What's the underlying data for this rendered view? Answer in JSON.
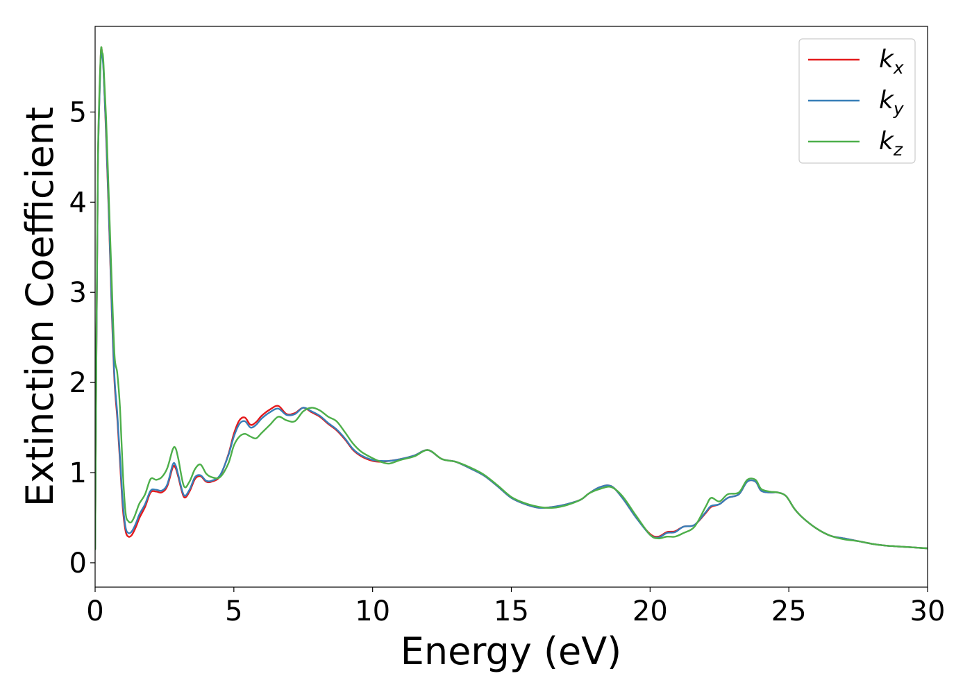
{
  "chart_data": {
    "type": "line",
    "title": "",
    "xlabel": "Energy (eV)",
    "ylabel": "Extinction Coefficient",
    "xlim": [
      0,
      30
    ],
    "ylim": [
      -0.27,
      5.95
    ],
    "xticks": [
      0,
      5,
      10,
      15,
      20,
      25,
      30
    ],
    "yticks": [
      0,
      1,
      2,
      3,
      4,
      5
    ],
    "grid": false,
    "legend_position": "top-right",
    "x": [
      0,
      0.05,
      0.1,
      0.2,
      0.25,
      0.3,
      0.4,
      0.5,
      0.6,
      0.7,
      0.8,
      0.9,
      1.0,
      1.1,
      1.2,
      1.3,
      1.4,
      1.5,
      1.6,
      1.8,
      2.0,
      2.2,
      2.4,
      2.6,
      2.8,
      2.9,
      3.0,
      3.2,
      3.4,
      3.6,
      3.8,
      4.0,
      4.2,
      4.5,
      4.8,
      5.0,
      5.2,
      5.4,
      5.6,
      5.8,
      6.0,
      6.3,
      6.6,
      6.9,
      7.2,
      7.5,
      7.8,
      8.1,
      8.4,
      8.7,
      9.0,
      9.3,
      9.6,
      10.0,
      10.3,
      10.6,
      11.0,
      11.5,
      12.0,
      12.5,
      13.0,
      13.5,
      14.0,
      14.5,
      15.0,
      15.5,
      16.0,
      16.5,
      17.0,
      17.5,
      17.8,
      18.2,
      18.6,
      19.0,
      19.5,
      20.0,
      20.3,
      20.6,
      20.9,
      21.2,
      21.6,
      22.0,
      22.2,
      22.5,
      22.8,
      23.2,
      23.5,
      23.8,
      24.0,
      24.3,
      24.6,
      24.9,
      25.2,
      25.5,
      26.0,
      26.5,
      27.0,
      27.5,
      28.0,
      28.5,
      29.0,
      29.5,
      30.0
    ],
    "series": [
      {
        "name": "k_x",
        "color": "#e41a1c",
        "values": [
          0.15,
          2.5,
          4.4,
          5.6,
          5.66,
          5.5,
          4.7,
          3.8,
          2.8,
          2.0,
          1.6,
          1.1,
          0.6,
          0.35,
          0.29,
          0.3,
          0.35,
          0.42,
          0.5,
          0.62,
          0.78,
          0.79,
          0.78,
          0.85,
          1.06,
          1.05,
          0.95,
          0.73,
          0.79,
          0.93,
          0.96,
          0.9,
          0.9,
          0.96,
          1.2,
          1.43,
          1.58,
          1.61,
          1.53,
          1.56,
          1.63,
          1.7,
          1.74,
          1.65,
          1.66,
          1.72,
          1.67,
          1.62,
          1.54,
          1.47,
          1.37,
          1.25,
          1.18,
          1.13,
          1.12,
          1.13,
          1.15,
          1.19,
          1.25,
          1.15,
          1.12,
          1.05,
          0.97,
          0.85,
          0.72,
          0.65,
          0.61,
          0.62,
          0.65,
          0.7,
          0.77,
          0.84,
          0.85,
          0.72,
          0.5,
          0.32,
          0.29,
          0.34,
          0.35,
          0.4,
          0.42,
          0.55,
          0.62,
          0.65,
          0.72,
          0.76,
          0.9,
          0.9,
          0.8,
          0.78,
          0.78,
          0.74,
          0.6,
          0.5,
          0.38,
          0.3,
          0.27,
          0.24,
          0.21,
          0.19,
          0.18,
          0.17,
          0.16
        ]
      },
      {
        "name": "k_y",
        "color": "#377eb8",
        "values": [
          0.15,
          2.5,
          4.4,
          5.55,
          5.62,
          5.48,
          4.75,
          3.85,
          2.85,
          2.05,
          1.65,
          1.15,
          0.66,
          0.39,
          0.33,
          0.34,
          0.39,
          0.46,
          0.54,
          0.65,
          0.8,
          0.81,
          0.8,
          0.87,
          1.09,
          1.08,
          0.97,
          0.75,
          0.81,
          0.95,
          0.97,
          0.91,
          0.91,
          0.97,
          1.19,
          1.4,
          1.54,
          1.57,
          1.5,
          1.53,
          1.6,
          1.67,
          1.71,
          1.64,
          1.65,
          1.72,
          1.68,
          1.63,
          1.55,
          1.48,
          1.38,
          1.26,
          1.19,
          1.14,
          1.13,
          1.13,
          1.15,
          1.19,
          1.25,
          1.15,
          1.12,
          1.05,
          0.97,
          0.85,
          0.72,
          0.65,
          0.61,
          0.62,
          0.65,
          0.7,
          0.77,
          0.84,
          0.85,
          0.72,
          0.5,
          0.31,
          0.28,
          0.33,
          0.34,
          0.4,
          0.42,
          0.56,
          0.63,
          0.65,
          0.72,
          0.76,
          0.9,
          0.9,
          0.8,
          0.78,
          0.78,
          0.74,
          0.6,
          0.5,
          0.38,
          0.3,
          0.27,
          0.24,
          0.21,
          0.19,
          0.18,
          0.17,
          0.16
        ]
      },
      {
        "name": "k_z",
        "color": "#4daf4a",
        "values": [
          0.15,
          2.6,
          4.5,
          5.62,
          5.66,
          5.55,
          4.9,
          4.0,
          3.1,
          2.3,
          2.1,
          1.7,
          1.0,
          0.55,
          0.46,
          0.45,
          0.5,
          0.58,
          0.66,
          0.76,
          0.93,
          0.92,
          0.95,
          1.05,
          1.26,
          1.27,
          1.15,
          0.85,
          0.9,
          1.04,
          1.09,
          0.99,
          0.95,
          0.95,
          1.1,
          1.3,
          1.4,
          1.43,
          1.4,
          1.38,
          1.44,
          1.53,
          1.62,
          1.58,
          1.57,
          1.68,
          1.72,
          1.69,
          1.62,
          1.57,
          1.45,
          1.32,
          1.23,
          1.16,
          1.12,
          1.1,
          1.14,
          1.18,
          1.25,
          1.15,
          1.12,
          1.06,
          0.98,
          0.86,
          0.73,
          0.66,
          0.62,
          0.61,
          0.64,
          0.7,
          0.77,
          0.82,
          0.84,
          0.74,
          0.52,
          0.31,
          0.27,
          0.29,
          0.29,
          0.33,
          0.4,
          0.62,
          0.72,
          0.68,
          0.76,
          0.78,
          0.92,
          0.92,
          0.82,
          0.79,
          0.78,
          0.74,
          0.6,
          0.5,
          0.38,
          0.3,
          0.26,
          0.24,
          0.21,
          0.19,
          0.18,
          0.17,
          0.16
        ]
      }
    ]
  }
}
